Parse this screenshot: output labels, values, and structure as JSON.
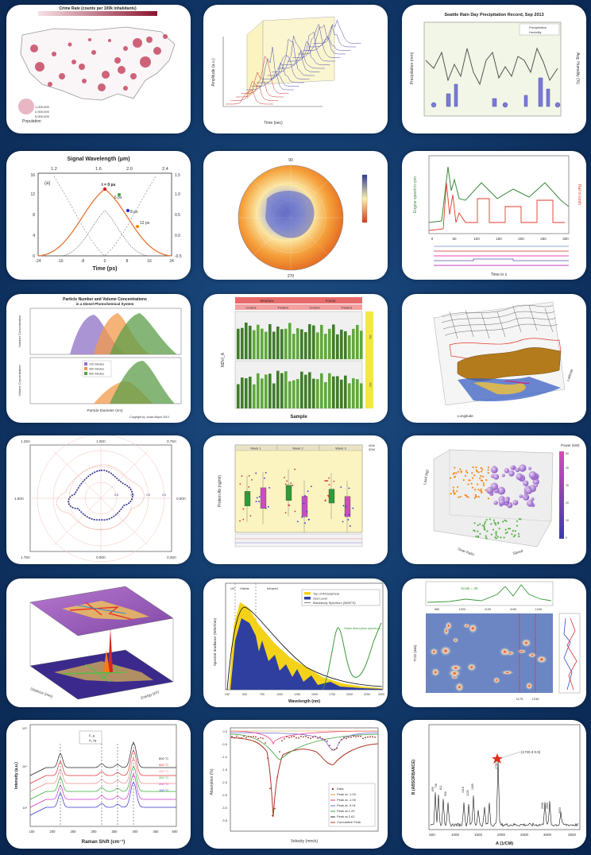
{
  "tiles": {
    "us_map": {
      "title": "Crime Rate (counts per 100k inhabitants)",
      "legend_label": "Population",
      "legend_sizes": [
        "1,000,000",
        "2,000,000",
        "5,000,000"
      ]
    },
    "waterfall": {
      "xlabel": "Time (sec)",
      "ylabel": "Amplitude (a.u.)"
    },
    "seattle": {
      "title": "Seattle Rain Day Precipitation Record, Sep 2013",
      "ylabel_left": "Precipitation (mm)",
      "ylabel_right": "Avg. Humidity (%)",
      "legend": [
        "Precipitation",
        "Humidity"
      ]
    },
    "signal": {
      "title": "Signal Wavelength (μm)",
      "top_ticks": [
        "1.2",
        "1.6",
        "2.0",
        "2.4"
      ],
      "xlabel": "Time (ps)",
      "x_ticks": [
        "-24",
        "-16",
        "-8",
        "0",
        "8",
        "16",
        "24"
      ],
      "y_ticks": [
        "0",
        "4",
        "8",
        "12",
        "16"
      ],
      "right_ticks": [
        "-0.5",
        "0.0",
        "0.5",
        "1.0",
        "1.5"
      ],
      "panel_label": "(a)",
      "labels": [
        "t = 0 ps",
        "6 ps",
        "8 ps",
        "12 ps"
      ]
    },
    "polar_map": {
      "tick_top": "90",
      "tick_bottom": "270"
    },
    "engine": {
      "ylabel_left": "Engine speed in rpm",
      "ylabel_right": "Rail in km/h",
      "xlabel": "Time in s",
      "x_ticks": [
        "0",
        "50",
        "100",
        "150",
        "200",
        "250",
        "300"
      ]
    },
    "particle": {
      "title": "Particle Number and Volume Concentrations",
      "subtitle": "in a Diesel Photochemical System",
      "ylabel_top": "Number Concentration",
      "ylabel_bottom": "Volume Concentration",
      "xlabel": "Particle Diameter (nm)",
      "legend": [
        "100 minutes",
        "300 minutes",
        "500 minutes"
      ],
      "footer": "Copyright by Jonas Mayer 2013"
    },
    "bar_grid": {
      "group_labels": [
        "Meadow",
        "Forest"
      ],
      "sub_labels": [
        "Control",
        "Treated",
        "Control",
        "Treated"
      ],
      "xlabel": "Sample",
      "ylabel": "NDVI_A",
      "side_labels": [
        "G1",
        "G2"
      ]
    },
    "surface3d": {
      "axis_x": "Longitude",
      "axis_y": "Latitude"
    },
    "polar_ring": {
      "top_left": "1.25π",
      "top_mid": "1.00π",
      "top_right": "0.75π",
      "left": "1.50π",
      "right": "0.50π",
      "bottom_left": "1.75π",
      "bottom_mid": "0.00π",
      "bottom_right": "0.25π",
      "ring_labels": [
        "0.5",
        "1.0",
        "1.5",
        "2.0"
      ]
    },
    "boxplot": {
      "weeks": [
        "Week 1",
        "Week 2",
        "Week 3"
      ],
      "ylabel": "Protein Ab (ng/ml)",
      "legend": [
        "ADM",
        "SDM"
      ]
    },
    "scatter3d": {
      "colorbar_title": "Power (kW)",
      "colorbar_ticks": [
        "0",
        "10",
        "20",
        "30",
        "40",
        "50"
      ],
      "axis_z": "Load (kg)",
      "axis_x": "Gear Ratio",
      "axis_y": "Speed"
    },
    "surface_peak": {
      "axis_x": "Distance (mm)",
      "axis_y": "Energy (eV)"
    },
    "solar": {
      "region_labels": [
        "UV",
        "Visible",
        "Infrared"
      ],
      "legend": [
        "Top of Atmosphere",
        "Sea Level",
        "Blackbody Spectrum (5800°K)"
      ],
      "ylabel": "Spectral Irradiance (W/m²/nm)",
      "xlabel": "Wavelength (nm)",
      "x_ticks": [
        "250",
        "500",
        "750",
        "1000",
        "1250",
        "1500",
        "1750",
        "2000",
        "2250",
        "2500"
      ],
      "annotation": "Water absorption spectrum"
    },
    "spectral_map": {
      "scale_label": "Scale = 30",
      "x_ticks": [
        "980",
        "1020",
        "1100",
        "1160",
        "1240"
      ],
      "bottom_ticks": [
        "1175",
        "1235"
      ],
      "ylabel": "TOD (min)"
    },
    "raman": {
      "xlabel": "Raman Shift (cm⁻¹)",
      "ylabel": "Intensity (a.u.)",
      "x_ticks": [
        "150",
        "200",
        "250",
        "300",
        "350",
        "400",
        "450",
        "500"
      ],
      "temps": [
        "600 °C",
        "500 °C",
        "400 °C",
        "300 °C",
        "200 °C",
        "100 °C"
      ],
      "legend": [
        "E_g",
        "A_1g"
      ],
      "y_ticks": [
        "10⁵",
        "10⁴",
        "10³"
      ]
    },
    "mossbauer": {
      "ylabel": "Absorption (%)",
      "xlabel": "Velocity (mm/s)",
      "legend": [
        "Data",
        "Peak at -1.29",
        "Peak at -1.05",
        "Peak at -0.01",
        "Peak at 1.29",
        "Peak at 2.61",
        "Cumulative Peak"
      ],
      "y_ticks": [
        "0.0",
        "-0.5",
        "-1.0",
        "-1.5",
        "-2.0",
        "-2.5",
        "-3.0",
        "-3.5"
      ]
    },
    "ir": {
      "ylabel": "B (ABSORBANCE)",
      "xlabel": "A (1/CM)",
      "x_ticks": [
        "500",
        "1000",
        "1500",
        "2000",
        "2500",
        "3000",
        "3500"
      ],
      "star_label": "(1730.3 0.9)",
      "peak_labels": [
        "1730",
        "2938",
        "2856",
        "3063",
        "1265",
        "1105",
        "1018",
        "900",
        "811",
        "746",
        "699"
      ]
    }
  },
  "colors": {
    "background": "#123a6b",
    "tile": "#ffffff",
    "red_series": "#e1392b",
    "green_series": "#3a8a3a",
    "navy_series": "#2b2b8a",
    "yellow_panel": "#fbf4c0"
  }
}
